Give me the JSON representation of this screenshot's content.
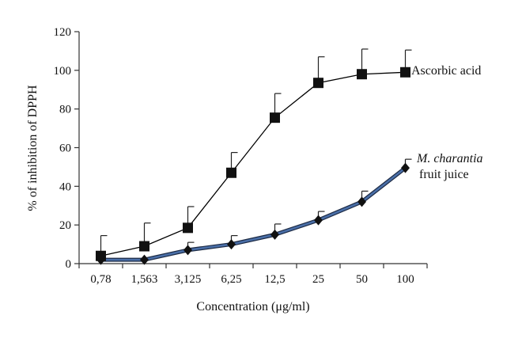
{
  "chart_data": {
    "type": "line",
    "xlabel": "Concentration (μg/ml)",
    "ylabel": "% of inhibition of DPPH",
    "categories": [
      "0,78",
      "1,563",
      "3,125",
      "6,25",
      "12,5",
      "25",
      "50",
      "100"
    ],
    "ylim": [
      0,
      120
    ],
    "yticks": [
      0,
      20,
      40,
      60,
      80,
      100,
      120
    ],
    "grid": false,
    "legend": "inline labels at line ends",
    "series": [
      {
        "name": "Ascorbic acid",
        "marker": "square",
        "values": [
          4,
          9,
          18.5,
          47,
          75.5,
          93.5,
          98,
          99
        ],
        "error_upper": [
          10.5,
          12,
          11,
          10.5,
          12.5,
          13.5,
          13,
          11.5
        ],
        "color": "#000000"
      },
      {
        "name_italic": "M. charantia",
        "name_rest": "fruit juice",
        "marker": "diamond",
        "values": [
          2,
          2,
          7,
          10,
          15,
          22.5,
          32,
          49.5
        ],
        "error_upper": [
          0.5,
          0.5,
          4,
          4.5,
          5.5,
          4.5,
          5.5,
          4.5
        ],
        "color": "#000000",
        "line_color": "#4a6fa8"
      }
    ]
  }
}
